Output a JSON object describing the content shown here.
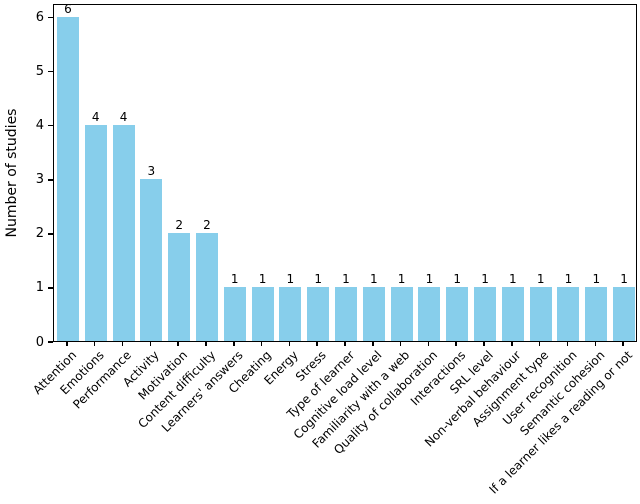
{
  "chart_data": {
    "type": "bar",
    "title": "",
    "xlabel": "",
    "ylabel": "Number of studies",
    "categories": [
      "Attention",
      "Emotions",
      "Performance",
      "Activity",
      "Motivation",
      "Content difficulty",
      "Learners' answers",
      "Cheating",
      "Energy",
      "Stress",
      "Type of learner",
      "Cognitive load level",
      "Familiarity with a web",
      "Quality of collaboration",
      "Interactions",
      "SRL level",
      "Non-verbal behaviour",
      "Assignment type",
      "User recognition",
      "Semantic cohesion",
      "If a learner likes a reading or not"
    ],
    "values": [
      6,
      4,
      4,
      3,
      2,
      2,
      1,
      1,
      1,
      1,
      1,
      1,
      1,
      1,
      1,
      1,
      1,
      1,
      1,
      1,
      1
    ],
    "value_labels": [
      "6",
      "4",
      "4",
      "3",
      "2",
      "2",
      "1",
      "1",
      "1",
      "1",
      "1",
      "1",
      "1",
      "1",
      "1",
      "1",
      "1",
      "1",
      "1",
      "1",
      "1"
    ],
    "yticks": [
      "0",
      "1",
      "2",
      "3",
      "4",
      "5",
      "6"
    ],
    "ylim": [
      0,
      6.25
    ],
    "x_tick_rotation_deg": 45,
    "grid": false,
    "legend": "none",
    "bar_color": "#87CEEB",
    "axis_color": "#000000",
    "text_color": "#000000",
    "background_color": "#ffffff"
  }
}
